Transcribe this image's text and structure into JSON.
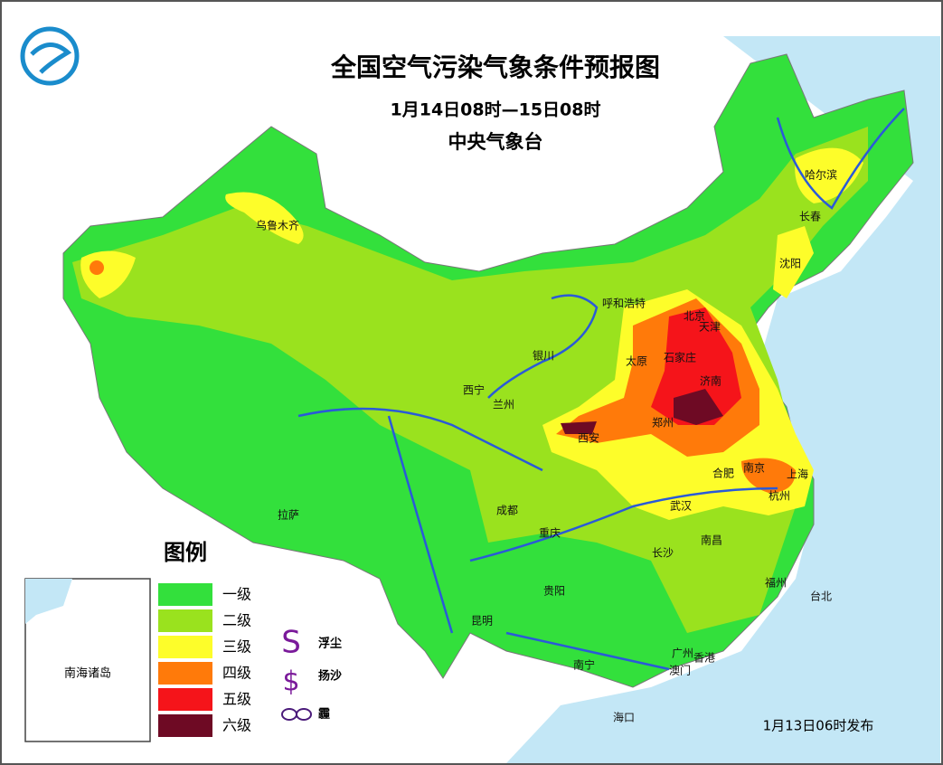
{
  "header": {
    "title": "全国空气污染气象条件预报图",
    "subtitle": "1月14日08时—15日08时",
    "issuer": "中央气象台"
  },
  "legend": {
    "title": "图例",
    "items": [
      {
        "label": "一级",
        "color": "#33e03c"
      },
      {
        "label": "二级",
        "color": "#9ae21e"
      },
      {
        "label": "三级",
        "color": "#fdfd2a"
      },
      {
        "label": "四级",
        "color": "#ff7a0a"
      },
      {
        "label": "五级",
        "color": "#f5141a"
      },
      {
        "label": "六级",
        "color": "#6e0a24"
      }
    ],
    "symbols": [
      {
        "label": "浮尘"
      },
      {
        "label": "扬沙"
      },
      {
        "label": "霾"
      }
    ]
  },
  "cities": [
    "乌鲁木齐",
    "哈尔滨",
    "长春",
    "沈阳",
    "呼和浩特",
    "北京",
    "天津",
    "银川",
    "太原",
    "石家庄",
    "济南",
    "西宁",
    "兰州",
    "郑州",
    "西安",
    "合肥",
    "南京",
    "上海",
    "杭州",
    "拉萨",
    "成都",
    "重庆",
    "武汉",
    "长沙",
    "南昌",
    "福州",
    "台北",
    "贵阳",
    "昆明",
    "南宁",
    "广州",
    "香港",
    "澳门",
    "海口"
  ],
  "inset": {
    "label": "南海诸岛"
  },
  "footer": {
    "release": "1月13日06时发布"
  }
}
